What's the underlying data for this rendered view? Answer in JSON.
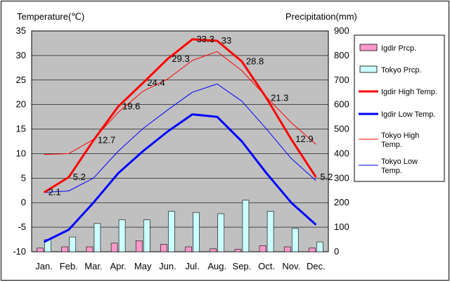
{
  "chart_data": {
    "type": "bar+line",
    "title": "",
    "left_axis_title": "Temperature(℃)",
    "right_axis_title": "Precipitation(mm)",
    "categories": [
      "Jan.",
      "Feb.",
      "Mar.",
      "Apr.",
      "May",
      "Jun.",
      "Jul.",
      "Aug.",
      "Sep.",
      "Oct.",
      "Nov.",
      "Dec."
    ],
    "temp_axis": {
      "min": -10,
      "max": 35,
      "step": 5
    },
    "precip_axis": {
      "min": 0,
      "max": 900,
      "step": 100
    },
    "grid": true,
    "legend_position": "right",
    "bar_series": [
      {
        "name": "Igdir Prcp.",
        "color": "#ff99cc",
        "values": [
          15,
          20,
          20,
          35,
          45,
          30,
          20,
          12,
          10,
          25,
          20,
          15
        ]
      },
      {
        "name": "Tokyo Prcp.",
        "color": "#ccffff",
        "values": [
          50,
          60,
          115,
          130,
          130,
          165,
          160,
          155,
          210,
          165,
          95,
          40
        ]
      }
    ],
    "line_series": [
      {
        "name": "Igdir High Temp.",
        "color": "#ff0000",
        "width": 3,
        "values": [
          2.1,
          5.2,
          12.7,
          19.6,
          24.4,
          29.3,
          33.3,
          33,
          28.8,
          21.3,
          12.9,
          5.2
        ],
        "labels": [
          "2.1",
          "5.2",
          "12.7",
          "19.6",
          "24.4",
          "29.3",
          "33.3",
          "33",
          "28.8",
          "21.3",
          "12.9",
          "5.2"
        ]
      },
      {
        "name": "Igdir Low Temp.",
        "color": "#0000ff",
        "width": 3,
        "values": [
          -8,
          -5.5,
          0,
          6,
          10.5,
          14.5,
          18,
          17.5,
          12.5,
          6,
          0,
          -4.5
        ]
      },
      {
        "name": "Tokyo High Temp.",
        "color": "#ff0000",
        "width": 1,
        "values": [
          9.8,
          10,
          12.9,
          18.4,
          22.7,
          25.2,
          29,
          30.8,
          26.9,
          21.5,
          16.3,
          11.9
        ]
      },
      {
        "name": "Tokyo Low Temp.",
        "color": "#0000ff",
        "width": 1,
        "values": [
          2.1,
          2.4,
          5,
          10.5,
          15.1,
          18.9,
          22.5,
          24.2,
          20.7,
          15,
          9,
          4.5
        ]
      }
    ]
  },
  "legend": [
    {
      "label": "Igdir Prcp.",
      "kind": "bar",
      "color": "#ff99cc"
    },
    {
      "label": "Tokyo Prcp.",
      "kind": "bar",
      "color": "#ccffff"
    },
    {
      "label": "Igdir High Temp.",
      "kind": "line",
      "color": "#ff0000",
      "width": 3
    },
    {
      "label": "Igdir Low Temp.",
      "kind": "line",
      "color": "#0000ff",
      "width": 3
    },
    {
      "label": "Tokyo High Temp.",
      "kind": "line",
      "color": "#ff0000",
      "width": 1
    },
    {
      "label": "Tokyo Low Temp.",
      "kind": "line",
      "color": "#0000ff",
      "width": 1
    }
  ]
}
